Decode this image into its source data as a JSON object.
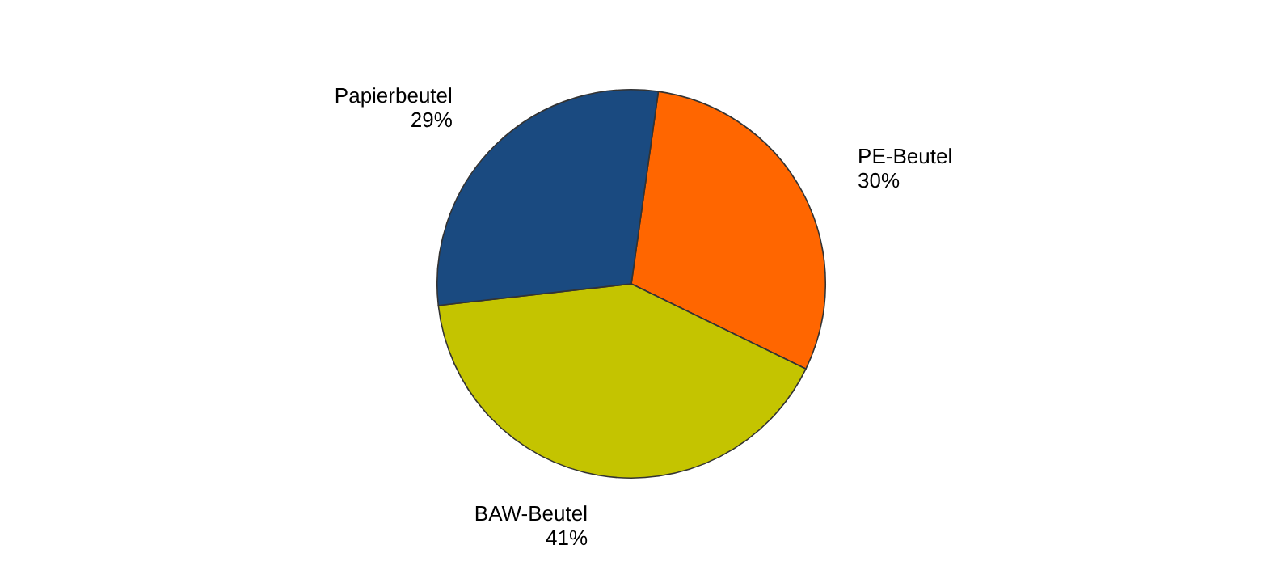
{
  "chart_data": {
    "type": "pie",
    "categories": [
      "PE-Beutel",
      "BAW-Beutel",
      "Papierbeutel"
    ],
    "values": [
      30,
      41,
      29
    ],
    "value_labels": [
      "30%",
      "41%",
      "29%"
    ],
    "colors": [
      "#ff6600",
      "#c4c400",
      "#1a4a80"
    ]
  }
}
